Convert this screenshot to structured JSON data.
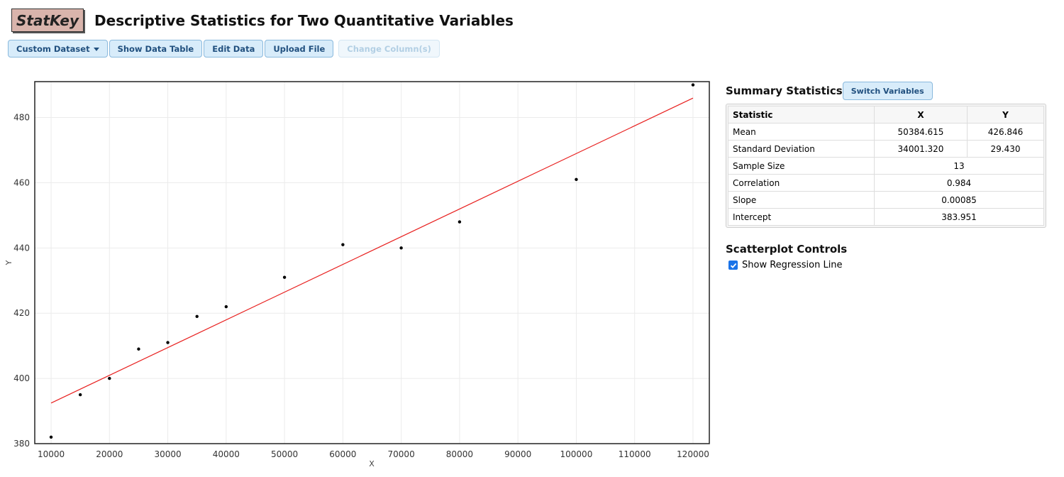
{
  "header": {
    "logo": "StatKey",
    "title": "Descriptive Statistics for Two Quantitative Variables"
  },
  "toolbar": {
    "custom_dataset": "Custom Dataset",
    "show_data_table": "Show Data Table",
    "edit_data": "Edit Data",
    "upload_file": "Upload File",
    "change_columns": "Change Column(s)"
  },
  "summary": {
    "title": "Summary Statistics",
    "switch_label": "Switch Variables",
    "headers": [
      "Statistic",
      "X",
      "Y"
    ],
    "rows": [
      {
        "label": "Mean",
        "x": "50384.615",
        "y": "426.846"
      },
      {
        "label": "Standard Deviation",
        "x": "34001.320",
        "y": "29.430"
      },
      {
        "label": "Sample Size",
        "value": "13"
      },
      {
        "label": "Correlation",
        "value": "0.984"
      },
      {
        "label": "Slope",
        "value": "0.00085"
      },
      {
        "label": "Intercept",
        "value": "383.951"
      }
    ]
  },
  "controls": {
    "title": "Scatterplot Controls",
    "show_regression_label": "Show Regression Line",
    "show_regression_checked": true
  },
  "colors": {
    "regression": "#e8201f",
    "point": "#000000",
    "button_bg": "#d8ecfa",
    "button_text": "#21507f"
  },
  "chart_data": {
    "type": "scatter",
    "xlabel": "X",
    "ylabel": "Y",
    "xlim": [
      7200,
      122800
    ],
    "ylim": [
      380,
      491
    ],
    "xticks": [
      10000,
      20000,
      30000,
      40000,
      50000,
      60000,
      70000,
      80000,
      90000,
      100000,
      110000,
      120000
    ],
    "yticks": [
      380,
      400,
      420,
      440,
      460,
      480
    ],
    "grid": true,
    "points": [
      {
        "x": 10000,
        "y": 382
      },
      {
        "x": 15000,
        "y": 395
      },
      {
        "x": 20000,
        "y": 400
      },
      {
        "x": 25000,
        "y": 409
      },
      {
        "x": 30000,
        "y": 411
      },
      {
        "x": 35000,
        "y": 419
      },
      {
        "x": 40000,
        "y": 422
      },
      {
        "x": 50000,
        "y": 431
      },
      {
        "x": 60000,
        "y": 441
      },
      {
        "x": 70000,
        "y": 440
      },
      {
        "x": 80000,
        "y": 448
      },
      {
        "x": 100000,
        "y": 461
      },
      {
        "x": 120000,
        "y": 490
      }
    ],
    "regression": {
      "slope": 0.00085,
      "intercept": 383.951
    }
  }
}
